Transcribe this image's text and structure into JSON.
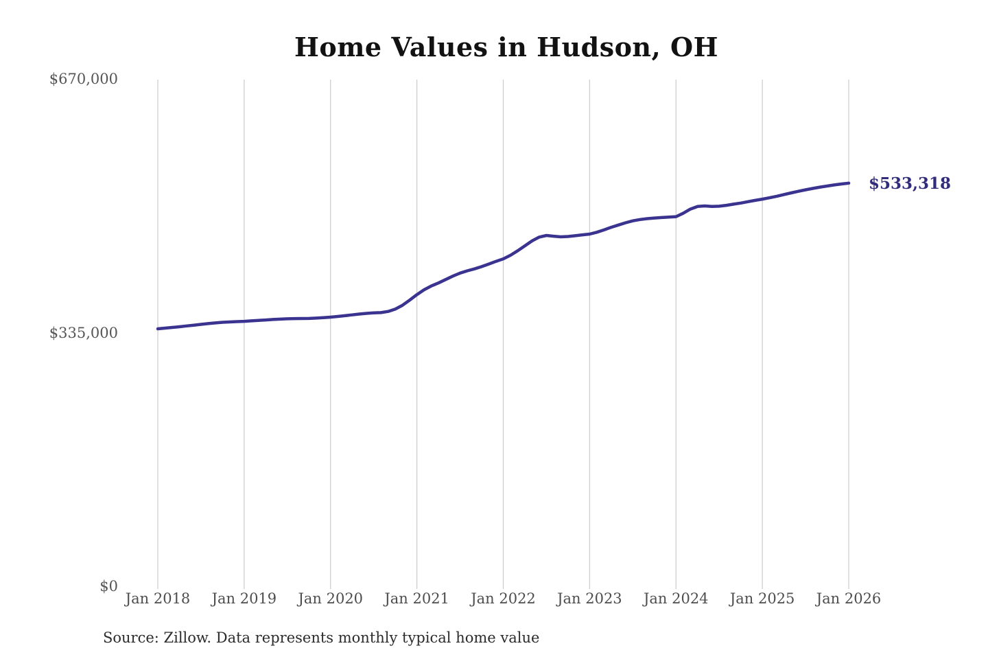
{
  "title": "Home Values in Hudson, OH",
  "source_note": "Source: Zillow. Data represents monthly typical home value",
  "end_label": "$533,318",
  "colors": {
    "line": "#3a338f",
    "end_label_text": "#322c7c",
    "grid": "#cbcbcb",
    "x_axis_text": "#4d4d4d",
    "y_axis_text": "#555555",
    "title_text": "#121212",
    "source_text": "#2b2b2b",
    "background": "#ffffff"
  },
  "chart_data": {
    "type": "line",
    "title": "Home Values in Hudson, OH",
    "xlabel": "",
    "ylabel": "",
    "ylim": [
      0,
      670000
    ],
    "grid": "vertical-only",
    "legend": "none",
    "x_tick_labels": [
      "Jan 2018",
      "Jan 2019",
      "Jan 2020",
      "Jan 2021",
      "Jan 2022",
      "Jan 2023",
      "Jan 2024",
      "Jan 2025",
      "Jan 2026"
    ],
    "y_ticks": [
      670000,
      335000,
      0
    ],
    "y_tick_labels": [
      "$670,000",
      "$335,000",
      "$0"
    ],
    "series_name": "Monthly typical home value",
    "frequency": "monthly",
    "start_month": "Jan 2018",
    "end_month": "Jan 2026",
    "final_value": 533318,
    "values": [
      340900,
      341800,
      342700,
      343600,
      344700,
      345700,
      346800,
      347800,
      348700,
      349500,
      350000,
      350400,
      350800,
      351400,
      352000,
      352600,
      353200,
      353700,
      354100,
      354400,
      354500,
      354600,
      355000,
      355600,
      356300,
      357200,
      358200,
      359300,
      360400,
      361300,
      361900,
      362300,
      363800,
      367000,
      372000,
      378800,
      386000,
      392500,
      397500,
      401500,
      406000,
      410500,
      414500,
      417500,
      420000,
      423000,
      426500,
      430000,
      433300,
      438000,
      444000,
      450500,
      457000,
      462000,
      464200,
      463200,
      462400,
      462800,
      463800,
      465000,
      466000,
      468500,
      471500,
      475000,
      478000,
      481000,
      483500,
      485200,
      486400,
      487200,
      487900,
      488400,
      489000,
      493500,
      499000,
      502500,
      503200,
      502500,
      502800,
      504000,
      505500,
      507000,
      508800,
      510500,
      512200,
      514000,
      516000,
      518200,
      520400,
      522500,
      524500,
      526300,
      528000,
      529500,
      530900,
      532200,
      533318
    ]
  }
}
